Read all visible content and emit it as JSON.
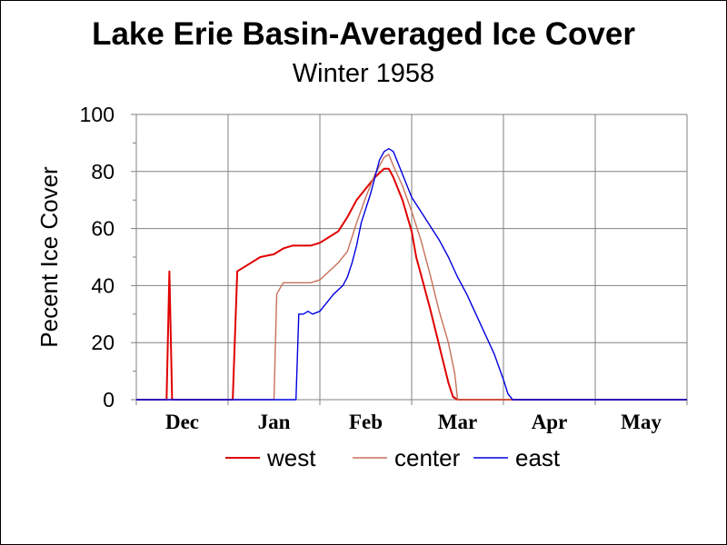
{
  "chart_data": {
    "type": "line",
    "title": "Lake Erie Basin-Averaged Ice Cover",
    "subtitle": "Winter 1958",
    "ylabel": "Pecent Ice Cover",
    "xlabel": "",
    "ylim": [
      0,
      100
    ],
    "xlim": [
      0,
      6
    ],
    "yticks": [
      "0",
      "20",
      "40",
      "60",
      "80",
      "100"
    ],
    "month_labels": [
      "Dec",
      "Jan",
      "Feb",
      "Mar",
      "Apr",
      "May"
    ],
    "grid": true,
    "legend_position": "bottom",
    "series": [
      {
        "name": "west",
        "color": "#e00000",
        "points": [
          [
            0,
            0
          ],
          [
            0.33,
            0
          ],
          [
            0.36,
            45
          ],
          [
            0.39,
            0
          ],
          [
            1.05,
            0
          ],
          [
            1.1,
            45
          ],
          [
            1.25,
            48
          ],
          [
            1.35,
            50
          ],
          [
            1.5,
            51
          ],
          [
            1.6,
            53
          ],
          [
            1.7,
            54
          ],
          [
            1.9,
            54
          ],
          [
            2.0,
            55
          ],
          [
            2.1,
            57
          ],
          [
            2.2,
            59
          ],
          [
            2.3,
            64
          ],
          [
            2.4,
            70
          ],
          [
            2.5,
            74
          ],
          [
            2.6,
            78
          ],
          [
            2.7,
            81
          ],
          [
            2.75,
            81
          ],
          [
            2.8,
            78
          ],
          [
            2.9,
            70
          ],
          [
            3.0,
            59
          ],
          [
            3.05,
            50
          ],
          [
            3.1,
            44
          ],
          [
            3.2,
            32
          ],
          [
            3.3,
            19
          ],
          [
            3.4,
            6
          ],
          [
            3.45,
            1
          ],
          [
            3.5,
            0
          ],
          [
            6.0,
            0
          ]
        ]
      },
      {
        "name": "center",
        "color": "#c87058",
        "points": [
          [
            0,
            0
          ],
          [
            1.5,
            0
          ],
          [
            1.53,
            37
          ],
          [
            1.6,
            41
          ],
          [
            1.9,
            41
          ],
          [
            2.0,
            42
          ],
          [
            2.1,
            45
          ],
          [
            2.2,
            48
          ],
          [
            2.3,
            52
          ],
          [
            2.4,
            62
          ],
          [
            2.5,
            71
          ],
          [
            2.6,
            79
          ],
          [
            2.7,
            85
          ],
          [
            2.75,
            86
          ],
          [
            2.8,
            82
          ],
          [
            2.9,
            75
          ],
          [
            3.0,
            66
          ],
          [
            3.1,
            56
          ],
          [
            3.2,
            44
          ],
          [
            3.3,
            31
          ],
          [
            3.4,
            20
          ],
          [
            3.47,
            9
          ],
          [
            3.5,
            0
          ],
          [
            6.0,
            0
          ]
        ]
      },
      {
        "name": "east",
        "color": "#0000e0",
        "points": [
          [
            0,
            0
          ],
          [
            1.74,
            0
          ],
          [
            1.77,
            30
          ],
          [
            1.82,
            30
          ],
          [
            1.87,
            31
          ],
          [
            1.92,
            30
          ],
          [
            2.0,
            31
          ],
          [
            2.05,
            33
          ],
          [
            2.15,
            37
          ],
          [
            2.25,
            40
          ],
          [
            2.3,
            43
          ],
          [
            2.35,
            48
          ],
          [
            2.4,
            54
          ],
          [
            2.45,
            62
          ],
          [
            2.55,
            72
          ],
          [
            2.6,
            78
          ],
          [
            2.65,
            84
          ],
          [
            2.7,
            87
          ],
          [
            2.75,
            88
          ],
          [
            2.8,
            87
          ],
          [
            2.85,
            83
          ],
          [
            2.9,
            79
          ],
          [
            3.0,
            71
          ],
          [
            3.1,
            66
          ],
          [
            3.2,
            61
          ],
          [
            3.3,
            56
          ],
          [
            3.4,
            50
          ],
          [
            3.5,
            43
          ],
          [
            3.6,
            37
          ],
          [
            3.7,
            30
          ],
          [
            3.8,
            23
          ],
          [
            3.9,
            16
          ],
          [
            4.0,
            7
          ],
          [
            4.05,
            2
          ],
          [
            4.1,
            0
          ],
          [
            6.0,
            0
          ]
        ]
      }
    ]
  }
}
